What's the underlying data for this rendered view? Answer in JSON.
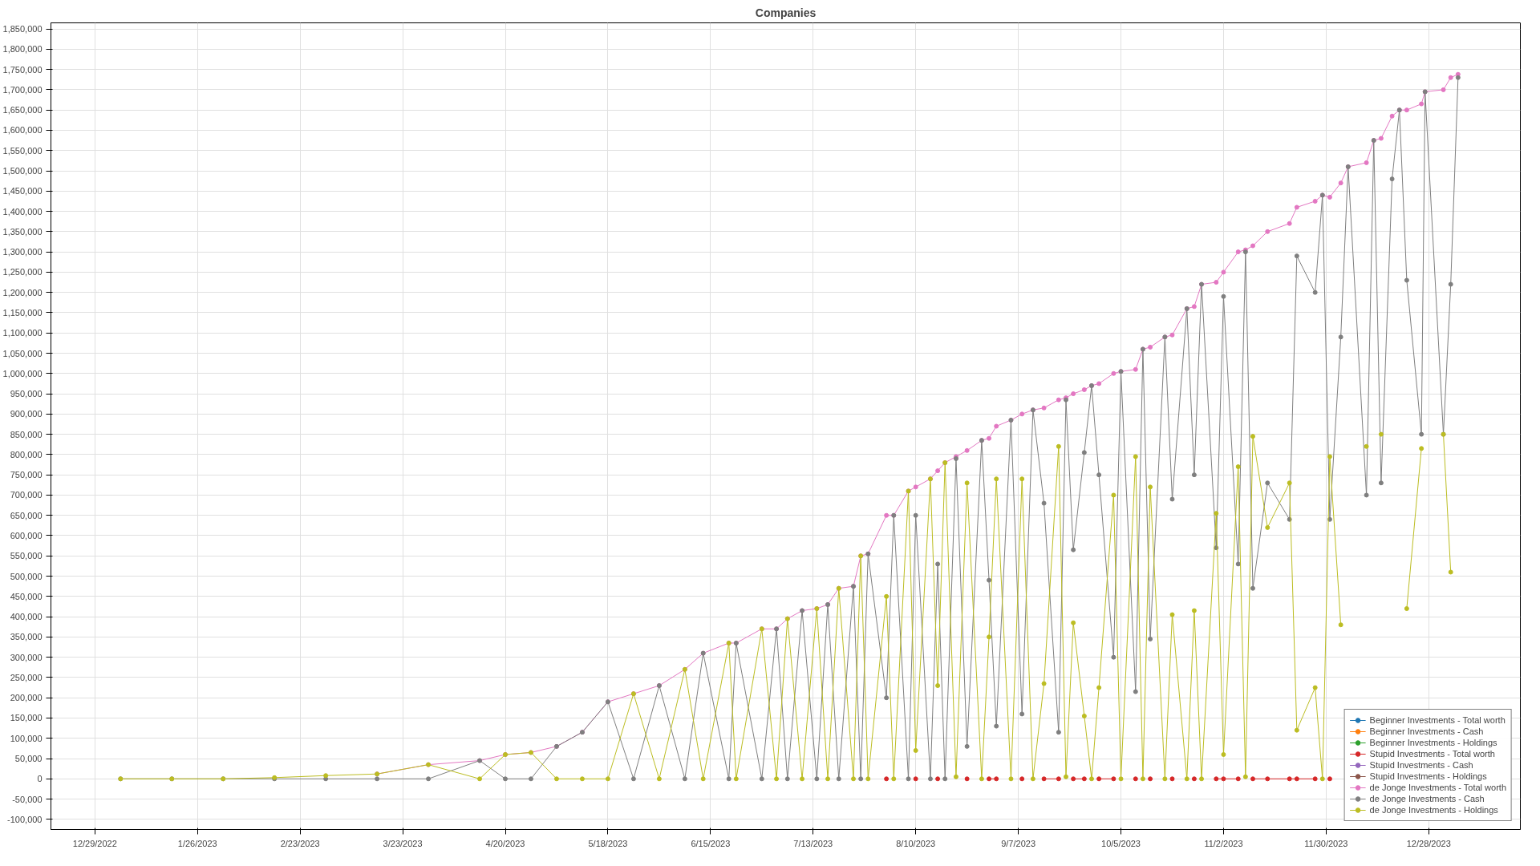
{
  "chart_data": {
    "type": "line",
    "title": "Companies",
    "marker": "circle",
    "line_style": "solid",
    "grid": true,
    "legend": "bottom right",
    "xlim": [
      "2022-12-17",
      "2024-01-22"
    ],
    "xticks": [
      {
        "value": "2022-12-29",
        "label": "12/29/2022"
      },
      {
        "value": "2023-01-26",
        "label": "1/26/2023"
      },
      {
        "value": "2023-02-23",
        "label": "2/23/2023"
      },
      {
        "value": "2023-03-23",
        "label": "3/23/2023"
      },
      {
        "value": "2023-04-20",
        "label": "4/20/2023"
      },
      {
        "value": "2023-05-18",
        "label": "5/18/2023"
      },
      {
        "value": "2023-06-15",
        "label": "6/15/2023"
      },
      {
        "value": "2023-07-13",
        "label": "7/13/2023"
      },
      {
        "value": "2023-08-10",
        "label": "8/10/2023"
      },
      {
        "value": "2023-09-07",
        "label": "9/7/2023"
      },
      {
        "value": "2023-10-05",
        "label": "10/5/2023"
      },
      {
        "value": "2023-11-02",
        "label": "11/2/2023"
      },
      {
        "value": "2023-11-30",
        "label": "11/30/2023"
      },
      {
        "value": "2023-12-28",
        "label": "12/28/2023"
      }
    ],
    "ylim": [
      -125000,
      1865000
    ],
    "yticks": [
      {
        "value": -100000,
        "label": "-100,000"
      },
      {
        "value": -50000,
        "label": "-50,000"
      },
      0,
      {
        "value": 50000,
        "label": "50,000"
      },
      {
        "value": 100000,
        "label": "100,000"
      },
      {
        "value": 150000,
        "label": "150,000"
      },
      {
        "value": 200000,
        "label": "200,000"
      },
      {
        "value": 250000,
        "label": "250,000"
      },
      {
        "value": 300000,
        "label": "300,000"
      },
      {
        "value": 350000,
        "label": "350,000"
      },
      {
        "value": 400000,
        "label": "400,000"
      },
      {
        "value": 450000,
        "label": "450,000"
      },
      {
        "value": 500000,
        "label": "500,000"
      },
      {
        "value": 550000,
        "label": "550,000"
      },
      {
        "value": 600000,
        "label": "600,000"
      },
      {
        "value": 650000,
        "label": "650,000"
      },
      {
        "value": 700000,
        "label": "700,000"
      },
      {
        "value": 750000,
        "label": "750,000"
      },
      {
        "value": 800000,
        "label": "800,000"
      },
      {
        "value": 850000,
        "label": "850,000"
      },
      {
        "value": 900000,
        "label": "900,000"
      },
      {
        "value": 950000,
        "label": "950,000"
      },
      {
        "value": 1000000,
        "label": "1,000,000"
      },
      {
        "value": 1050000,
        "label": "1,050,000"
      },
      {
        "value": 1100000,
        "label": "1,100,000"
      },
      {
        "value": 1150000,
        "label": "1,150,000"
      },
      {
        "value": 1200000,
        "label": "1,200,000"
      },
      {
        "value": 1250000,
        "label": "1,250,000"
      },
      {
        "value": 1300000,
        "label": "1,300,000"
      },
      {
        "value": 1350000,
        "label": "1,350,000"
      },
      {
        "value": 1400000,
        "label": "1,400,000"
      },
      {
        "value": 1450000,
        "label": "1,450,000"
      },
      {
        "value": 1500000,
        "label": "1,500,000"
      },
      {
        "value": 1550000,
        "label": "1,550,000"
      },
      {
        "value": 1600000,
        "label": "1,600,000"
      },
      {
        "value": 1650000,
        "label": "1,650,000"
      },
      {
        "value": 1700000,
        "label": "1,700,000"
      },
      {
        "value": 1750000,
        "label": "1,750,000"
      },
      {
        "value": 1800000,
        "label": "1,800,000"
      },
      {
        "value": 1850000,
        "label": "1,850,000"
      }
    ],
    "x": [
      "2023-01-05",
      "2023-01-19",
      "2023-02-02",
      "2023-02-16",
      "2023-03-02",
      "2023-03-16",
      "2023-03-30",
      "2023-04-13",
      "2023-04-20",
      "2023-04-27",
      "2023-05-04",
      "2023-05-11",
      "2023-05-18",
      "2023-05-25",
      "2023-06-01",
      "2023-06-08",
      "2023-06-13",
      "2023-06-20",
      "2023-06-22",
      "2023-06-29",
      "2023-07-03",
      "2023-07-06",
      "2023-07-10",
      "2023-07-14",
      "2023-07-17",
      "2023-07-20",
      "2023-07-24",
      "2023-07-26",
      "2023-07-28",
      "2023-08-02",
      "2023-08-04",
      "2023-08-08",
      "2023-08-10",
      "2023-08-14",
      "2023-08-16",
      "2023-08-18",
      "2023-08-21",
      "2023-08-24",
      "2023-08-28",
      "2023-08-30",
      "2023-09-01",
      "2023-09-05",
      "2023-09-08",
      "2023-09-11",
      "2023-09-14",
      "2023-09-18",
      "2023-09-20",
      "2023-09-22",
      "2023-09-25",
      "2023-09-27",
      "2023-09-29",
      "2023-10-03",
      "2023-10-05",
      "2023-10-09",
      "2023-10-11",
      "2023-10-13",
      "2023-10-17",
      "2023-10-19",
      "2023-10-23",
      "2023-10-25",
      "2023-10-27",
      "2023-10-31",
      "2023-11-02",
      "2023-11-06",
      "2023-11-08",
      "2023-11-10",
      "2023-11-14",
      "2023-11-20",
      "2023-11-22",
      "2023-11-27",
      "2023-11-29",
      "2023-12-01",
      "2023-12-04",
      "2023-12-06",
      "2023-12-11",
      "2023-12-13",
      "2023-12-15",
      "2023-12-18",
      "2023-12-20",
      "2023-12-22",
      "2023-12-26",
      "2023-12-27",
      "2024-01-01",
      "2024-01-03",
      "2024-01-05"
    ],
    "series": [
      {
        "name": "Beginner Investments - Total worth",
        "color": "#1f77b4",
        "values": [
          null,
          null,
          null,
          null,
          null,
          null,
          null,
          null,
          null,
          null,
          null,
          null,
          null,
          null,
          null,
          null,
          null,
          null,
          null,
          null,
          null,
          null,
          null,
          null,
          null,
          null,
          null,
          null,
          null,
          null,
          null,
          null,
          null,
          null,
          null,
          null,
          null,
          null,
          null,
          null,
          null,
          null,
          null,
          null,
          null,
          null,
          null,
          null,
          null,
          null,
          null,
          null,
          null,
          null,
          null,
          null,
          null,
          null,
          null,
          null,
          null,
          null,
          null,
          null,
          null,
          null,
          null,
          null,
          null,
          null,
          null,
          null,
          null,
          null,
          null,
          null,
          null,
          null,
          null,
          null,
          null,
          null,
          null,
          null,
          null
        ]
      },
      {
        "name": "Beginner Investments - Cash",
        "color": "#ff7f0e",
        "values": [
          null,
          null,
          null,
          null,
          null,
          null,
          null,
          null,
          null,
          null,
          null,
          null,
          null,
          null,
          null,
          null,
          null,
          null,
          null,
          null,
          null,
          null,
          null,
          null,
          null,
          null,
          null,
          null,
          null,
          null,
          null,
          null,
          null,
          null,
          null,
          null,
          null,
          null,
          null,
          null,
          null,
          null,
          null,
          null,
          null,
          null,
          null,
          null,
          null,
          null,
          null,
          null,
          null,
          null,
          null,
          null,
          null,
          null,
          null,
          null,
          null,
          null,
          null,
          null,
          null,
          null,
          null,
          null,
          null,
          null,
          null,
          null,
          null,
          null,
          null,
          null,
          null,
          null,
          null,
          null,
          null,
          null,
          null,
          null,
          null
        ]
      },
      {
        "name": "Beginner Investments - Holdings",
        "color": "#2ca02c",
        "values": [
          null,
          null,
          null,
          null,
          null,
          null,
          null,
          null,
          null,
          null,
          null,
          null,
          null,
          null,
          null,
          null,
          null,
          null,
          null,
          null,
          null,
          null,
          null,
          null,
          null,
          null,
          null,
          null,
          null,
          null,
          null,
          null,
          null,
          null,
          null,
          null,
          null,
          null,
          null,
          null,
          null,
          null,
          null,
          null,
          null,
          null,
          null,
          null,
          null,
          null,
          null,
          null,
          null,
          null,
          null,
          null,
          null,
          null,
          null,
          null,
          null,
          null,
          null,
          null,
          null,
          null,
          null,
          null,
          null,
          null,
          null,
          null,
          null,
          null,
          null,
          null,
          null,
          null,
          null,
          null,
          null,
          null,
          null,
          null,
          null
        ]
      },
      {
        "name": "Stupid Investments - Total worth",
        "color": "#d62728",
        "values": [
          null,
          null,
          null,
          null,
          null,
          null,
          null,
          null,
          null,
          null,
          null,
          null,
          null,
          null,
          null,
          null,
          null,
          null,
          null,
          null,
          null,
          null,
          null,
          null,
          null,
          null,
          null,
          null,
          null,
          0,
          null,
          null,
          0,
          null,
          0,
          null,
          null,
          0,
          null,
          0,
          0,
          null,
          0,
          null,
          0,
          0,
          null,
          0,
          0,
          null,
          0,
          0,
          null,
          0,
          null,
          0,
          null,
          0,
          null,
          0,
          null,
          0,
          0,
          0,
          null,
          0,
          0,
          0,
          0,
          0,
          null,
          0,
          null,
          null,
          null,
          null,
          null,
          null,
          null,
          null,
          null,
          null,
          null,
          null,
          null
        ]
      },
      {
        "name": "Stupid Investments - Cash",
        "color": "#9467bd",
        "values": [
          null,
          null,
          null,
          null,
          null,
          null,
          null,
          null,
          null,
          null,
          null,
          null,
          null,
          null,
          null,
          null,
          null,
          null,
          null,
          null,
          null,
          null,
          null,
          null,
          null,
          null,
          null,
          null,
          null,
          null,
          null,
          null,
          null,
          null,
          null,
          null,
          null,
          null,
          null,
          null,
          null,
          null,
          null,
          null,
          null,
          null,
          null,
          null,
          null,
          null,
          null,
          null,
          null,
          null,
          null,
          null,
          null,
          null,
          null,
          null,
          null,
          null,
          null,
          null,
          null,
          null,
          null,
          null,
          null,
          null,
          null,
          null,
          null,
          null,
          null,
          null,
          null,
          null,
          null,
          null,
          null,
          null,
          null,
          null,
          null
        ]
      },
      {
        "name": "Stupid Investments - Holdings",
        "color": "#8c564b",
        "values": [
          null,
          null,
          null,
          null,
          null,
          null,
          null,
          null,
          null,
          null,
          null,
          null,
          null,
          null,
          null,
          null,
          null,
          null,
          null,
          null,
          null,
          null,
          null,
          null,
          null,
          null,
          null,
          null,
          null,
          null,
          null,
          null,
          null,
          null,
          null,
          null,
          null,
          null,
          null,
          null,
          null,
          null,
          null,
          null,
          null,
          null,
          null,
          null,
          null,
          null,
          null,
          null,
          null,
          null,
          null,
          null,
          null,
          null,
          null,
          null,
          null,
          null,
          null,
          null,
          null,
          null,
          null,
          null,
          null,
          null,
          null,
          null,
          null,
          null,
          null,
          null,
          null,
          null,
          null,
          null,
          null,
          null,
          null,
          null,
          null
        ]
      },
      {
        "name": "de Jonge Investments - Total worth",
        "color": "#e377c2",
        "values": [
          null,
          null,
          null,
          null,
          null,
          12000,
          35000,
          45000,
          60000,
          65000,
          80000,
          115000,
          190000,
          210000,
          230000,
          270000,
          310000,
          335000,
          335000,
          370000,
          370000,
          395000,
          415000,
          420000,
          430000,
          470000,
          475000,
          550000,
          555000,
          650000,
          650000,
          710000,
          720000,
          740000,
          760000,
          780000,
          795000,
          810000,
          835000,
          840000,
          870000,
          885000,
          900000,
          910000,
          915000,
          935000,
          940000,
          950000,
          960000,
          970000,
          975000,
          1000000,
          1005000,
          1010000,
          1060000,
          1065000,
          1090000,
          1095000,
          1160000,
          1165000,
          1220000,
          1225000,
          1250000,
          1300000,
          1305000,
          1315000,
          1350000,
          1370000,
          1410000,
          1425000,
          1440000,
          1435000,
          1470000,
          1510000,
          1520000,
          1575000,
          1580000,
          1635000,
          1650000,
          1650000,
          1665000,
          1695000,
          1700000,
          1730000,
          1738000
        ]
      },
      {
        "name": "de Jonge Investments - Cash",
        "color": "#7f7f7f",
        "values": [
          0,
          0,
          0,
          0,
          0,
          0,
          0,
          45000,
          0,
          0,
          80000,
          115000,
          190000,
          0,
          230000,
          0,
          310000,
          0,
          335000,
          0,
          370000,
          0,
          415000,
          0,
          430000,
          0,
          475000,
          0,
          555000,
          200000,
          650000,
          0,
          650000,
          0,
          530000,
          0,
          790000,
          80000,
          835000,
          490000,
          130000,
          885000,
          160000,
          910000,
          680000,
          115000,
          935000,
          565000,
          805000,
          970000,
          750000,
          300000,
          1005000,
          215000,
          1060000,
          345000,
          1090000,
          690000,
          1160000,
          750000,
          1220000,
          570000,
          1190000,
          530000,
          1300000,
          470000,
          730000,
          640000,
          1290000,
          1200000,
          1440000,
          640000,
          1090000,
          1510000,
          700000,
          1575000,
          730000,
          1480000,
          1650000,
          1230000,
          850000,
          1695000,
          850000,
          1220000,
          1730000
        ]
      },
      {
        "name": "de Jonge Investments - Holdings",
        "color": "#bcbd22",
        "values": [
          0,
          0,
          0,
          3000,
          8000,
          12000,
          35000,
          0,
          60000,
          65000,
          0,
          0,
          0,
          210000,
          0,
          270000,
          0,
          335000,
          0,
          370000,
          0,
          395000,
          0,
          420000,
          0,
          470000,
          0,
          550000,
          0,
          450000,
          0,
          710000,
          70000,
          740000,
          230000,
          780000,
          5000,
          730000,
          0,
          350000,
          740000,
          0,
          740000,
          0,
          235000,
          820000,
          5000,
          385000,
          155000,
          0,
          225000,
          700000,
          0,
          795000,
          0,
          720000,
          0,
          405000,
          0,
          415000,
          0,
          655000,
          60000,
          770000,
          5000,
          845000,
          620000,
          730000,
          120000,
          225000,
          0,
          795000,
          380000,
          null,
          820000,
          null,
          850000,
          null,
          null,
          420000,
          815000,
          null,
          850000,
          510000,
          null
        ]
      }
    ]
  }
}
